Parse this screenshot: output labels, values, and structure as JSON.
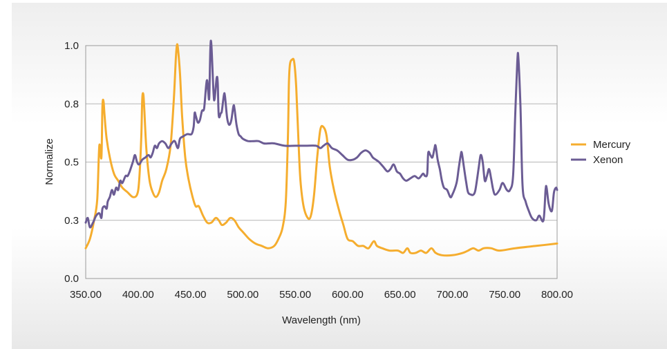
{
  "chart_data": {
    "type": "line",
    "xlabel": "Wavelength (nm)",
    "ylabel": "Normalize",
    "xlim": [
      350,
      800
    ],
    "ylim": [
      0,
      1
    ],
    "x_tick_labels": [
      "350.00",
      "400.00",
      "450.00",
      "500.00",
      "550.00",
      "600.00",
      "650.00",
      "700.00",
      "750.00",
      "800.00"
    ],
    "x_tick_values": [
      350,
      400,
      450,
      500,
      550,
      600,
      650,
      700,
      750,
      800
    ],
    "y_tick_labels": [
      "0.0",
      "0.3",
      "0.5",
      "0.8",
      "1.0"
    ],
    "y_tick_values": [
      0,
      0.25,
      0.5,
      0.75,
      1.0
    ],
    "grid": "horizontal",
    "legend_position": "right",
    "series": [
      {
        "name": "Mercury",
        "color": "#f5ad2e",
        "points": [
          [
            350,
            0.13
          ],
          [
            354,
            0.17
          ],
          [
            358,
            0.25
          ],
          [
            361,
            0.34
          ],
          [
            363,
            0.57
          ],
          [
            365,
            0.52
          ],
          [
            366,
            0.74
          ],
          [
            367,
            0.76
          ],
          [
            368,
            0.7
          ],
          [
            370,
            0.6
          ],
          [
            373,
            0.52
          ],
          [
            377,
            0.45
          ],
          [
            381,
            0.42
          ],
          [
            385,
            0.39
          ],
          [
            390,
            0.37
          ],
          [
            395,
            0.35
          ],
          [
            399,
            0.36
          ],
          [
            401,
            0.42
          ],
          [
            403,
            0.6
          ],
          [
            404,
            0.77
          ],
          [
            405,
            0.79
          ],
          [
            406,
            0.72
          ],
          [
            408,
            0.55
          ],
          [
            411,
            0.42
          ],
          [
            414,
            0.37
          ],
          [
            417,
            0.35
          ],
          [
            420,
            0.37
          ],
          [
            423,
            0.42
          ],
          [
            427,
            0.47
          ],
          [
            431,
            0.57
          ],
          [
            434,
            0.76
          ],
          [
            436,
            0.94
          ],
          [
            437,
            1.0
          ],
          [
            438,
            0.99
          ],
          [
            440,
            0.88
          ],
          [
            442,
            0.7
          ],
          [
            445,
            0.52
          ],
          [
            448,
            0.43
          ],
          [
            452,
            0.35
          ],
          [
            455,
            0.31
          ],
          [
            458,
            0.31
          ],
          [
            462,
            0.27
          ],
          [
            466,
            0.24
          ],
          [
            470,
            0.24
          ],
          [
            474,
            0.26
          ],
          [
            477,
            0.25
          ],
          [
            480,
            0.23
          ],
          [
            484,
            0.24
          ],
          [
            488,
            0.26
          ],
          [
            492,
            0.25
          ],
          [
            496,
            0.22
          ],
          [
            500,
            0.2
          ],
          [
            506,
            0.17
          ],
          [
            512,
            0.15
          ],
          [
            518,
            0.14
          ],
          [
            524,
            0.13
          ],
          [
            530,
            0.14
          ],
          [
            534,
            0.17
          ],
          [
            538,
            0.22
          ],
          [
            541,
            0.33
          ],
          [
            543,
            0.6
          ],
          [
            544,
            0.84
          ],
          [
            545,
            0.92
          ],
          [
            547,
            0.94
          ],
          [
            549,
            0.93
          ],
          [
            551,
            0.82
          ],
          [
            553,
            0.6
          ],
          [
            555,
            0.42
          ],
          [
            558,
            0.31
          ],
          [
            562,
            0.26
          ],
          [
            565,
            0.27
          ],
          [
            568,
            0.36
          ],
          [
            571,
            0.52
          ],
          [
            574,
            0.64
          ],
          [
            577,
            0.65
          ],
          [
            580,
            0.61
          ],
          [
            583,
            0.48
          ],
          [
            587,
            0.38
          ],
          [
            592,
            0.29
          ],
          [
            596,
            0.23
          ],
          [
            600,
            0.17
          ],
          [
            605,
            0.16
          ],
          [
            610,
            0.14
          ],
          [
            615,
            0.14
          ],
          [
            620,
            0.13
          ],
          [
            625,
            0.16
          ],
          [
            628,
            0.14
          ],
          [
            633,
            0.13
          ],
          [
            640,
            0.12
          ],
          [
            648,
            0.12
          ],
          [
            653,
            0.11
          ],
          [
            657,
            0.13
          ],
          [
            660,
            0.11
          ],
          [
            665,
            0.11
          ],
          [
            670,
            0.12
          ],
          [
            675,
            0.11
          ],
          [
            680,
            0.13
          ],
          [
            684,
            0.11
          ],
          [
            690,
            0.1
          ],
          [
            700,
            0.1
          ],
          [
            710,
            0.11
          ],
          [
            715,
            0.12
          ],
          [
            720,
            0.13
          ],
          [
            725,
            0.12
          ],
          [
            730,
            0.13
          ],
          [
            737,
            0.13
          ],
          [
            745,
            0.12
          ],
          [
            760,
            0.13
          ],
          [
            780,
            0.14
          ],
          [
            800,
            0.15
          ]
        ]
      },
      {
        "name": "Xenon",
        "color": "#6b5c94",
        "points": [
          [
            350,
            0.24
          ],
          [
            352,
            0.26
          ],
          [
            354,
            0.22
          ],
          [
            357,
            0.24
          ],
          [
            360,
            0.27
          ],
          [
            363,
            0.28
          ],
          [
            365,
            0.26
          ],
          [
            366,
            0.3
          ],
          [
            368,
            0.31
          ],
          [
            370,
            0.3
          ],
          [
            371,
            0.33
          ],
          [
            373,
            0.35
          ],
          [
            375,
            0.38
          ],
          [
            377,
            0.36
          ],
          [
            379,
            0.39
          ],
          [
            381,
            0.38
          ],
          [
            383,
            0.42
          ],
          [
            385,
            0.41
          ],
          [
            388,
            0.44
          ],
          [
            390,
            0.44
          ],
          [
            392,
            0.46
          ],
          [
            395,
            0.5
          ],
          [
            397,
            0.53
          ],
          [
            399,
            0.5
          ],
          [
            401,
            0.49
          ],
          [
            404,
            0.51
          ],
          [
            407,
            0.52
          ],
          [
            410,
            0.53
          ],
          [
            412,
            0.52
          ],
          [
            414,
            0.54
          ],
          [
            416,
            0.57
          ],
          [
            418,
            0.56
          ],
          [
            420,
            0.58
          ],
          [
            423,
            0.59
          ],
          [
            426,
            0.58
          ],
          [
            429,
            0.56
          ],
          [
            432,
            0.58
          ],
          [
            435,
            0.59
          ],
          [
            438,
            0.56
          ],
          [
            440,
            0.6
          ],
          [
            443,
            0.61
          ],
          [
            447,
            0.62
          ],
          [
            451,
            0.62
          ],
          [
            453,
            0.65
          ],
          [
            454,
            0.71
          ],
          [
            455,
            0.7
          ],
          [
            457,
            0.67
          ],
          [
            459,
            0.68
          ],
          [
            461,
            0.72
          ],
          [
            463,
            0.73
          ],
          [
            465,
            0.83
          ],
          [
            466,
            0.85
          ],
          [
            467,
            0.8
          ],
          [
            468,
            0.78
          ],
          [
            469,
            0.99
          ],
          [
            470,
            1.0
          ],
          [
            472,
            0.8
          ],
          [
            473,
            0.77
          ],
          [
            475,
            0.86
          ],
          [
            476,
            0.84
          ],
          [
            477,
            0.7
          ],
          [
            479,
            0.71
          ],
          [
            480,
            0.72
          ],
          [
            482,
            0.79
          ],
          [
            483,
            0.78
          ],
          [
            485,
            0.69
          ],
          [
            487,
            0.66
          ],
          [
            489,
            0.68
          ],
          [
            491,
            0.74
          ],
          [
            492,
            0.73
          ],
          [
            494,
            0.66
          ],
          [
            496,
            0.62
          ],
          [
            498,
            0.61
          ],
          [
            500,
            0.6
          ],
          [
            505,
            0.59
          ],
          [
            510,
            0.59
          ],
          [
            515,
            0.59
          ],
          [
            520,
            0.58
          ],
          [
            525,
            0.58
          ],
          [
            530,
            0.58
          ],
          [
            540,
            0.57
          ],
          [
            550,
            0.57
          ],
          [
            560,
            0.57
          ],
          [
            570,
            0.57
          ],
          [
            574,
            0.56
          ],
          [
            577,
            0.57
          ],
          [
            581,
            0.58
          ],
          [
            585,
            0.56
          ],
          [
            590,
            0.55
          ],
          [
            595,
            0.53
          ],
          [
            600,
            0.51
          ],
          [
            605,
            0.51
          ],
          [
            609,
            0.52
          ],
          [
            613,
            0.54
          ],
          [
            617,
            0.55
          ],
          [
            621,
            0.54
          ],
          [
            624,
            0.52
          ],
          [
            627,
            0.51
          ],
          [
            630,
            0.5
          ],
          [
            634,
            0.48
          ],
          [
            638,
            0.46
          ],
          [
            641,
            0.47
          ],
          [
            644,
            0.49
          ],
          [
            647,
            0.46
          ],
          [
            650,
            0.45
          ],
          [
            653,
            0.43
          ],
          [
            656,
            0.42
          ],
          [
            660,
            0.43
          ],
          [
            664,
            0.44
          ],
          [
            668,
            0.43
          ],
          [
            672,
            0.45
          ],
          [
            674,
            0.44
          ],
          [
            676,
            0.45
          ],
          [
            677,
            0.54
          ],
          [
            679,
            0.53
          ],
          [
            681,
            0.52
          ],
          [
            683,
            0.56
          ],
          [
            684,
            0.57
          ],
          [
            686,
            0.51
          ],
          [
            688,
            0.47
          ],
          [
            690,
            0.42
          ],
          [
            692,
            0.39
          ],
          [
            695,
            0.38
          ],
          [
            698,
            0.35
          ],
          [
            700,
            0.36
          ],
          [
            704,
            0.41
          ],
          [
            706,
            0.47
          ],
          [
            708,
            0.53
          ],
          [
            709,
            0.54
          ],
          [
            711,
            0.48
          ],
          [
            713,
            0.42
          ],
          [
            715,
            0.37
          ],
          [
            718,
            0.36
          ],
          [
            720,
            0.36
          ],
          [
            722,
            0.38
          ],
          [
            725,
            0.47
          ],
          [
            727,
            0.53
          ],
          [
            729,
            0.5
          ],
          [
            731,
            0.42
          ],
          [
            733,
            0.44
          ],
          [
            735,
            0.47
          ],
          [
            737,
            0.43
          ],
          [
            739,
            0.38
          ],
          [
            741,
            0.36
          ],
          [
            745,
            0.38
          ],
          [
            748,
            0.41
          ],
          [
            752,
            0.38
          ],
          [
            755,
            0.38
          ],
          [
            758,
            0.44
          ],
          [
            760,
            0.7
          ],
          [
            762,
            0.93
          ],
          [
            763,
            0.95
          ],
          [
            765,
            0.74
          ],
          [
            767,
            0.4
          ],
          [
            770,
            0.33
          ],
          [
            773,
            0.29
          ],
          [
            776,
            0.26
          ],
          [
            780,
            0.25
          ],
          [
            783,
            0.27
          ],
          [
            787,
            0.25
          ],
          [
            789,
            0.38
          ],
          [
            790,
            0.39
          ],
          [
            792,
            0.32
          ],
          [
            795,
            0.29
          ],
          [
            797,
            0.37
          ],
          [
            799,
            0.39
          ],
          [
            800,
            0.38
          ]
        ]
      }
    ]
  }
}
